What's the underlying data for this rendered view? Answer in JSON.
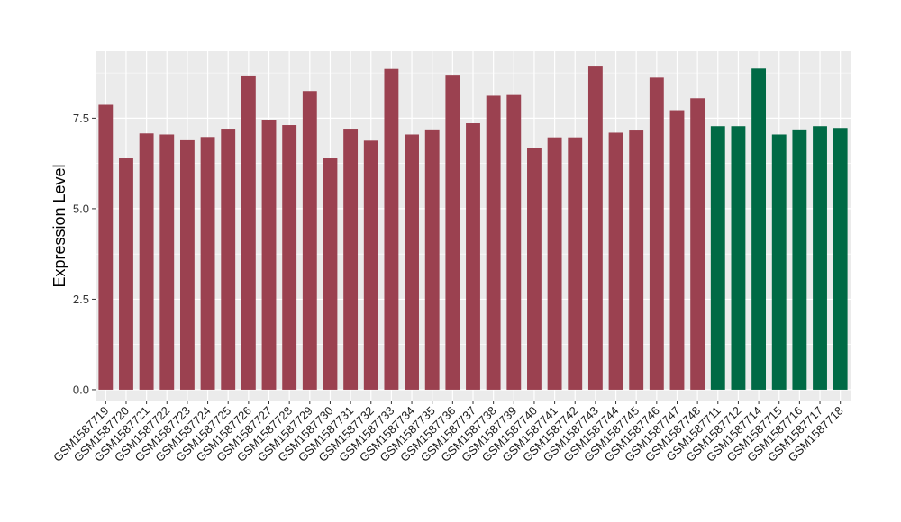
{
  "chart_data": {
    "type": "bar",
    "title": "",
    "xlabel": "",
    "ylabel": "Expression Level",
    "ylim": [
      -0.3,
      9.35
    ],
    "yticks": [
      0.0,
      2.5,
      5.0,
      7.5
    ],
    "ytick_labels": [
      "0.0",
      "2.5",
      "5.0",
      "7.5"
    ],
    "grid": true,
    "legend": "none",
    "colors": {
      "group1": "#9b4150",
      "group2": "#006a45",
      "panel": "#ebebeb",
      "gridline": "#ffffff"
    },
    "categories": [
      "GSM1587719",
      "GSM1587720",
      "GSM1587721",
      "GSM1587722",
      "GSM1587723",
      "GSM1587724",
      "GSM1587725",
      "GSM1587726",
      "GSM1587727",
      "GSM1587728",
      "GSM1587729",
      "GSM1587730",
      "GSM1587731",
      "GSM1587732",
      "GSM1587733",
      "GSM1587734",
      "GSM1587735",
      "GSM1587736",
      "GSM1587737",
      "GSM1587738",
      "GSM1587739",
      "GSM1587740",
      "GSM1587741",
      "GSM1587742",
      "GSM1587743",
      "GSM1587744",
      "GSM1587745",
      "GSM1587746",
      "GSM1587747",
      "GSM1587748",
      "GSM1587711",
      "GSM1587712",
      "GSM1587714",
      "GSM1587715",
      "GSM1587716",
      "GSM1587717",
      "GSM1587718"
    ],
    "values": [
      7.87,
      6.39,
      7.08,
      7.05,
      6.89,
      6.98,
      7.21,
      8.68,
      7.46,
      7.31,
      8.25,
      6.39,
      7.21,
      6.88,
      8.86,
      7.05,
      7.19,
      8.7,
      7.36,
      8.12,
      8.14,
      6.67,
      6.97,
      6.97,
      8.95,
      7.1,
      7.16,
      8.62,
      7.72,
      8.05,
      7.28,
      7.28,
      8.87,
      7.05,
      7.19,
      7.28,
      7.23
    ],
    "groups": [
      1,
      1,
      1,
      1,
      1,
      1,
      1,
      1,
      1,
      1,
      1,
      1,
      1,
      1,
      1,
      1,
      1,
      1,
      1,
      1,
      1,
      1,
      1,
      1,
      1,
      1,
      1,
      1,
      1,
      1,
      2,
      2,
      2,
      2,
      2,
      2,
      2
    ]
  }
}
